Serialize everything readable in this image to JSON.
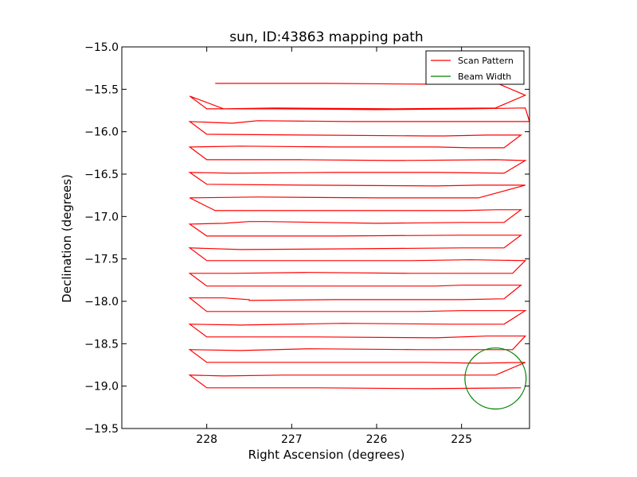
{
  "chart_data": {
    "type": "line",
    "title": "sun, ID:43863 mapping path",
    "xlabel": "Right Ascension (degrees)",
    "ylabel": "Declination (degrees)",
    "xlim": [
      229.0,
      224.2
    ],
    "ylim": [
      -19.5,
      -15.0
    ],
    "xticks": [
      228,
      227,
      226,
      225
    ],
    "xtick_labels": [
      "228",
      "227",
      "226",
      "225"
    ],
    "yticks": [
      -15.0,
      -15.5,
      -16.0,
      -16.5,
      -17.0,
      -17.5,
      -18.0,
      -18.5,
      -19.0,
      -19.5
    ],
    "ytick_labels": [
      "−15.0",
      "−15.5",
      "−16.0",
      "−16.5",
      "−17.0",
      "−17.5",
      "−18.0",
      "−18.5",
      "−19.0",
      "−19.5"
    ],
    "grid": false,
    "legend_position": "top-right",
    "series": [
      {
        "name": "Scan Pattern",
        "color": "#ff0000",
        "x": [
          227.9,
          226.6,
          225.4,
          224.6,
          224.25,
          224.6,
          225.8,
          227.2,
          227.8,
          228.2,
          228.0,
          227.2,
          226.0,
          224.9,
          224.25,
          224.2,
          224.25,
          225.0,
          226.3,
          227.4,
          227.5,
          227.7,
          228.2,
          228.0,
          226.8,
          225.4,
          225.2,
          224.7,
          224.3,
          224.5,
          224.9,
          225.3,
          226.5,
          227.6,
          228.2,
          228.0,
          226.9,
          225.8,
          224.6,
          224.25,
          224.5,
          225.3,
          226.5,
          227.7,
          228.2,
          228.0,
          226.8,
          225.3,
          224.8,
          224.25,
          224.8,
          226.0,
          227.4,
          228.2,
          227.9,
          226.5,
          225.0,
          224.6,
          224.3,
          224.5,
          225.0,
          226.0,
          227.3,
          227.5,
          227.8,
          228.2,
          228.0,
          226.5,
          225.0,
          224.3,
          224.5,
          225.0,
          226.2,
          227.6,
          228.2,
          228.0,
          226.6,
          225.6,
          224.9,
          224.25,
          224.4,
          225.6,
          226.8,
          227.7,
          228.2,
          228.0,
          226.5,
          225.3,
          225.0,
          224.3,
          224.5,
          225.0,
          226.5,
          227.5,
          227.5,
          227.8,
          228.2,
          228.0,
          226.6,
          225.5,
          225.0,
          224.25,
          224.5,
          225.1,
          226.4,
          227.6,
          228.2,
          228.0,
          226.7,
          225.3,
          224.7,
          224.25,
          224.4,
          225.5,
          226.8,
          227.6,
          228.2,
          228.0,
          226.8,
          225.4,
          224.8,
          224.25,
          224.6,
          225.6,
          227.1,
          227.8,
          228.2,
          228.0,
          226.7,
          225.4,
          224.3
        ],
        "y": [
          -15.43,
          -15.43,
          -15.44,
          -15.42,
          -15.57,
          -15.72,
          -15.73,
          -15.72,
          -15.73,
          -15.58,
          -15.73,
          -15.73,
          -15.74,
          -15.73,
          -15.72,
          -15.88,
          -15.88,
          -15.88,
          -15.88,
          -15.87,
          -15.88,
          -15.9,
          -15.88,
          -16.03,
          -16.04,
          -16.05,
          -16.05,
          -16.04,
          -16.04,
          -16.19,
          -16.19,
          -16.18,
          -16.18,
          -16.17,
          -16.18,
          -16.33,
          -16.33,
          -16.34,
          -16.33,
          -16.34,
          -16.49,
          -16.48,
          -16.48,
          -16.49,
          -16.48,
          -16.62,
          -16.63,
          -16.64,
          -16.63,
          -16.63,
          -16.78,
          -16.78,
          -16.77,
          -16.78,
          -16.93,
          -16.93,
          -16.93,
          -16.92,
          -16.92,
          -17.07,
          -17.07,
          -17.08,
          -17.06,
          -17.06,
          -17.08,
          -17.09,
          -17.23,
          -17.23,
          -17.22,
          -17.22,
          -17.37,
          -17.37,
          -17.38,
          -17.39,
          -17.37,
          -17.52,
          -17.52,
          -17.52,
          -17.51,
          -17.52,
          -17.67,
          -17.67,
          -17.66,
          -17.67,
          -17.67,
          -17.82,
          -17.82,
          -17.82,
          -17.81,
          -17.81,
          -17.97,
          -17.98,
          -17.98,
          -17.99,
          -17.98,
          -17.96,
          -17.96,
          -18.12,
          -18.12,
          -18.12,
          -18.11,
          -18.11,
          -18.27,
          -18.27,
          -18.26,
          -18.28,
          -18.27,
          -18.42,
          -18.42,
          -18.43,
          -18.41,
          -18.41,
          -18.57,
          -18.57,
          -18.56,
          -18.58,
          -18.57,
          -18.72,
          -18.72,
          -18.72,
          -18.73,
          -18.72,
          -18.87,
          -18.87,
          -18.87,
          -18.88,
          -18.87,
          -19.02,
          -19.02,
          -19.03,
          -19.02
        ]
      },
      {
        "name": "Beam Width",
        "color": "#008000",
        "shape": "circle",
        "center": [
          224.6,
          -18.91
        ],
        "radius": 0.36
      }
    ]
  }
}
